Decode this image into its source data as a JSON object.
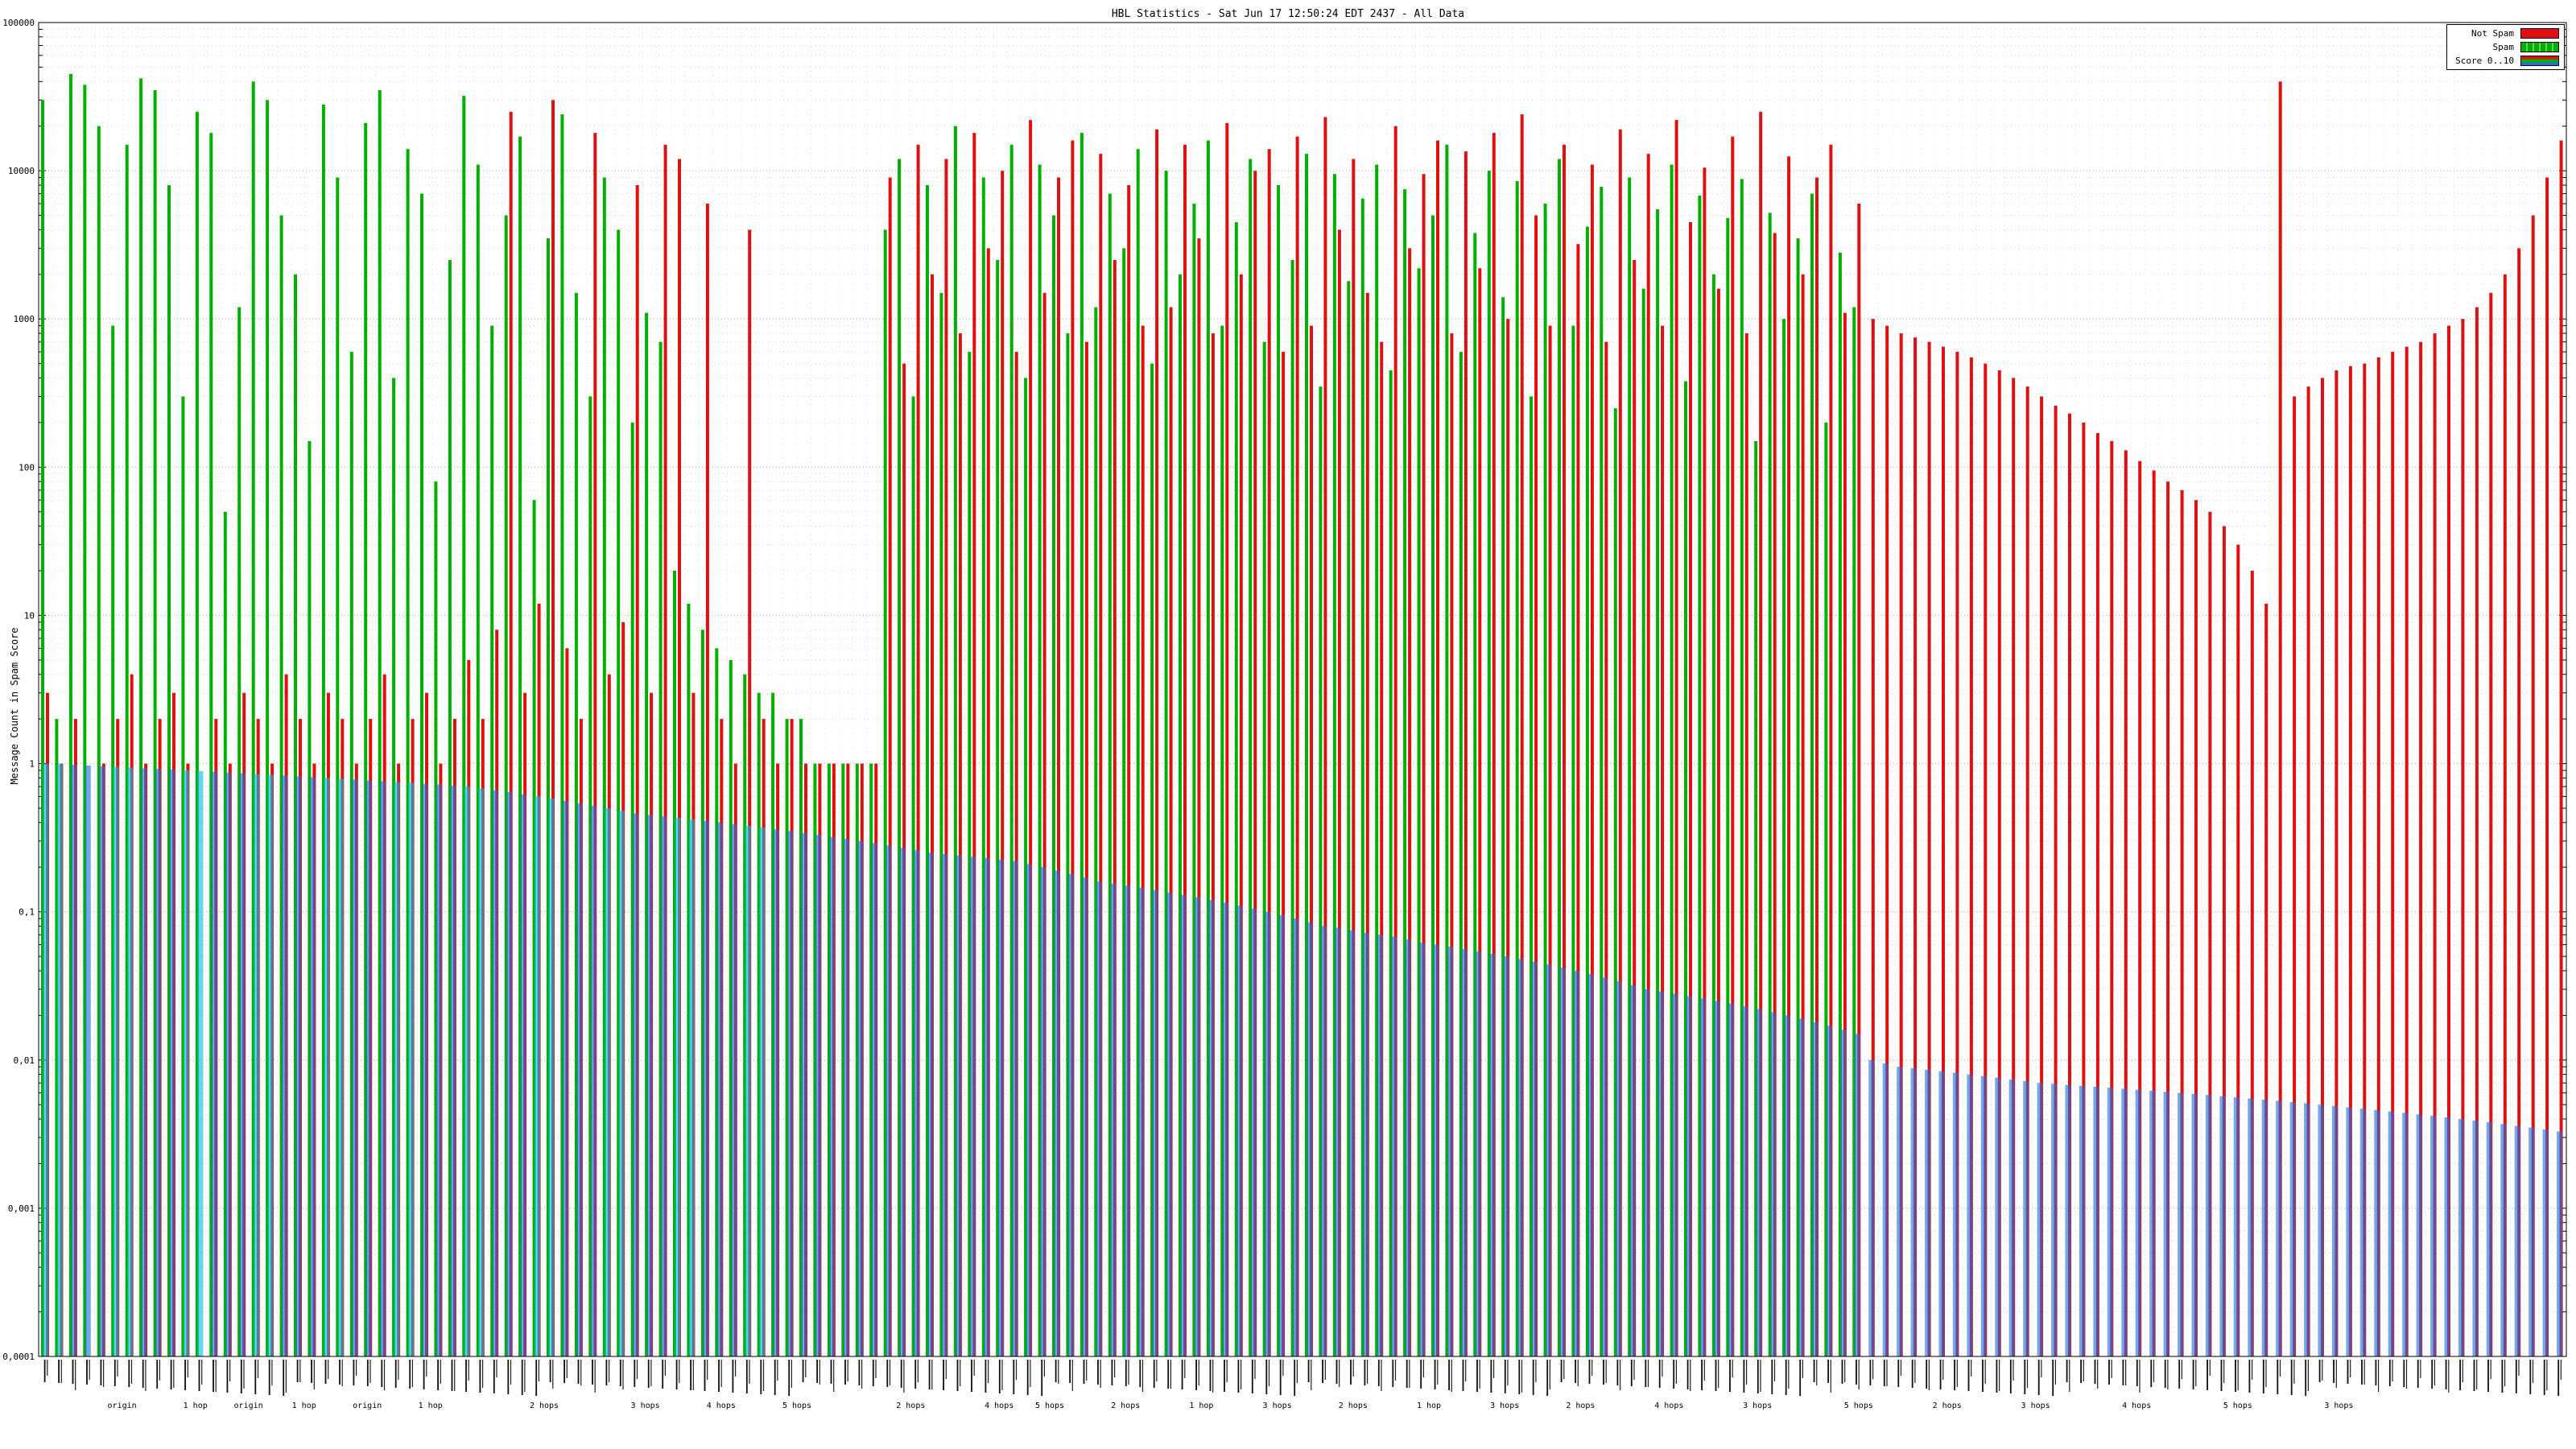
{
  "chart_data": {
    "type": "bar",
    "title": "HBL Statistics - Sat Jun 17 12:50:24 EDT 2437 - All Data",
    "ylabel": "Message Count in Spam Score",
    "yscale": "log",
    "ylim": [
      0.0001,
      100000
    ],
    "y_ticks": [
      "100000",
      "10000",
      "1000",
      "100",
      "10",
      "1",
      "0,1",
      "0,01",
      "0,001",
      "0,0001"
    ],
    "grid": true,
    "legend_position": "top-right",
    "legend": [
      {
        "name": "Not Spam",
        "color": "#e01010"
      },
      {
        "name": "Spam",
        "color": "#00b000"
      },
      {
        "name": "Score 0..10",
        "color": "#2070e0"
      }
    ],
    "score_alt_color": "#00c0e8",
    "x_group_labels": [
      {
        "label": "origin",
        "f": 0.033
      },
      {
        "label": "1 hop",
        "f": 0.062
      },
      {
        "label": "origin",
        "f": 0.083
      },
      {
        "label": "1 hop",
        "f": 0.105
      },
      {
        "label": "origin",
        "f": 0.13
      },
      {
        "label": "1 hop",
        "f": 0.155
      },
      {
        "label": "2 hops",
        "f": 0.2
      },
      {
        "label": "3 hops",
        "f": 0.24
      },
      {
        "label": "4 hops",
        "f": 0.27
      },
      {
        "label": "5 hops",
        "f": 0.3
      },
      {
        "label": "2 hops",
        "f": 0.345
      },
      {
        "label": "4 hops",
        "f": 0.38
      },
      {
        "label": "5 hops",
        "f": 0.4
      },
      {
        "label": "2 hops",
        "f": 0.43
      },
      {
        "label": "1 hop",
        "f": 0.46
      },
      {
        "label": "3 hops",
        "f": 0.49
      },
      {
        "label": "2 hops",
        "f": 0.52
      },
      {
        "label": "1 hop",
        "f": 0.55
      },
      {
        "label": "3 hops",
        "f": 0.58
      },
      {
        "label": "2 hops",
        "f": 0.61
      },
      {
        "label": "4 hops",
        "f": 0.645
      },
      {
        "label": "3 hops",
        "f": 0.68
      },
      {
        "label": "5 hops",
        "f": 0.72
      },
      {
        "label": "2 hops",
        "f": 0.755
      },
      {
        "label": "3 hops",
        "f": 0.79
      },
      {
        "label": "4 hops",
        "f": 0.83
      },
      {
        "label": "5 hops",
        "f": 0.87
      },
      {
        "label": "3 hops",
        "f": 0.91
      }
    ],
    "series": [
      {
        "name": "Not Spam",
        "color": "#e01010",
        "values": [
          3,
          1,
          2,
          0,
          1,
          2,
          4,
          1,
          2,
          3,
          1,
          0,
          2,
          1,
          3,
          2,
          1,
          4,
          2,
          1,
          3,
          2,
          1,
          2,
          4,
          1,
          2,
          3,
          1,
          2,
          5,
          2,
          8,
          25000,
          3,
          12,
          30000,
          6,
          2,
          18000,
          4,
          9,
          8000,
          3,
          15000,
          12000,
          3,
          6000,
          2,
          1,
          4000,
          2,
          1,
          2,
          1,
          1,
          1,
          1,
          1,
          1,
          9000,
          500,
          15000,
          2000,
          12000,
          800,
          18000,
          3000,
          10000,
          600,
          22000,
          1500,
          9000,
          16000,
          700,
          13000,
          2500,
          8000,
          900,
          19000,
          1200,
          15000,
          3500,
          800,
          21000,
          2000,
          10000,
          14000,
          600,
          17000,
          900,
          23000,
          4000,
          12000,
          1500,
          700,
          20000,
          3000,
          9500,
          16000,
          800,
          13500,
          2200,
          18000,
          1000,
          24000,
          5000,
          900,
          15000,
          3200,
          11000,
          700,
          19000,
          2500,
          13000,
          900,
          22000,
          4500,
          10500,
          1600,
          17000,
          800,
          25000,
          3800,
          12500,
          2000,
          9000,
          15000,
          1100,
          6000,
          1000,
          900,
          800,
          750,
          700,
          650,
          600,
          550,
          500,
          450,
          400,
          350,
          300,
          260,
          230,
          200,
          170,
          150,
          130,
          110,
          95,
          80,
          70,
          60,
          50,
          40,
          30,
          20,
          12,
          40000,
          300,
          350,
          400,
          450,
          480,
          500,
          550,
          600,
          650,
          700,
          800,
          900,
          1000,
          1200,
          1500,
          2000,
          3000,
          5000,
          9000,
          16000
        ]
      },
      {
        "name": "Spam",
        "color": "#00b000",
        "values": [
          30000,
          2,
          45000,
          38000,
          20000,
          900,
          15000,
          42000,
          35000,
          8000,
          300,
          25000,
          18000,
          50,
          1200,
          40000,
          30000,
          5000,
          2000,
          150,
          28000,
          9000,
          600,
          21000,
          35000,
          400,
          14000,
          7000,
          80,
          2500,
          32000,
          11000,
          900,
          5000,
          17000,
          60,
          3500,
          24000,
          1500,
          300,
          9000,
          4000,
          200,
          1100,
          700,
          20,
          12,
          8,
          6,
          5,
          4,
          3,
          3,
          2,
          2,
          1,
          1,
          1,
          1,
          1,
          4000,
          12000,
          300,
          8000,
          1500,
          20000,
          600,
          9000,
          2500,
          15000,
          400,
          11000,
          5000,
          800,
          18000,
          1200,
          7000,
          3000,
          14000,
          500,
          10000,
          2000,
          6000,
          16000,
          900,
          4500,
          12000,
          700,
          8000,
          2500,
          13000,
          350,
          9500,
          1800,
          6500,
          11000,
          450,
          7500,
          2200,
          5000,
          15000,
          600,
          3800,
          10000,
          1400,
          8500,
          300,
          6000,
          12000,
          900,
          4200,
          7800,
          250,
          9000,
          1600,
          5500,
          11000,
          380,
          6800,
          2000,
          4800,
          8800,
          150,
          5200,
          1000,
          3500,
          7000,
          200,
          2800,
          1200,
          0,
          0,
          0,
          0,
          0,
          0,
          0,
          0,
          0,
          0,
          0,
          0,
          0,
          0,
          0,
          0,
          0,
          0,
          0,
          0,
          0,
          0,
          0,
          0,
          0,
          0,
          0,
          0,
          0,
          0,
          0,
          0,
          0,
          0,
          0,
          0,
          0,
          0,
          0,
          0,
          0,
          0,
          0,
          0,
          0,
          0,
          0,
          0,
          0,
          0
        ]
      },
      {
        "name": "Score 0..10",
        "color": "#2070e0",
        "values": [
          1.0,
          1.0,
          0.98,
          0.97,
          0.96,
          0.95,
          0.94,
          0.93,
          0.92,
          0.91,
          0.9,
          0.89,
          0.88,
          0.87,
          0.86,
          0.85,
          0.84,
          0.83,
          0.82,
          0.81,
          0.8,
          0.79,
          0.78,
          0.77,
          0.76,
          0.75,
          0.74,
          0.73,
          0.72,
          0.71,
          0.7,
          0.68,
          0.66,
          0.64,
          0.62,
          0.6,
          0.58,
          0.56,
          0.54,
          0.52,
          0.5,
          0.48,
          0.46,
          0.45,
          0.44,
          0.43,
          0.42,
          0.41,
          0.4,
          0.39,
          0.38,
          0.37,
          0.36,
          0.35,
          0.34,
          0.33,
          0.32,
          0.31,
          0.3,
          0.29,
          0.28,
          0.27,
          0.26,
          0.25,
          0.245,
          0.24,
          0.235,
          0.23,
          0.225,
          0.22,
          0.21,
          0.2,
          0.19,
          0.18,
          0.17,
          0.16,
          0.155,
          0.15,
          0.145,
          0.14,
          0.135,
          0.13,
          0.125,
          0.12,
          0.115,
          0.11,
          0.105,
          0.1,
          0.095,
          0.09,
          0.085,
          0.08,
          0.078,
          0.075,
          0.072,
          0.07,
          0.068,
          0.065,
          0.062,
          0.06,
          0.058,
          0.056,
          0.054,
          0.052,
          0.05,
          0.048,
          0.046,
          0.044,
          0.042,
          0.04,
          0.038,
          0.036,
          0.034,
          0.032,
          0.03,
          0.029,
          0.028,
          0.027,
          0.026,
          0.025,
          0.024,
          0.023,
          0.022,
          0.021,
          0.02,
          0.019,
          0.018,
          0.017,
          0.016,
          0.015,
          0.01,
          0.0095,
          0.009,
          0.0088,
          0.0086,
          0.0084,
          0.0082,
          0.008,
          0.0078,
          0.0076,
          0.0074,
          0.0072,
          0.007,
          0.0069,
          0.0068,
          0.0067,
          0.0066,
          0.0065,
          0.0064,
          0.0063,
          0.0062,
          0.0061,
          0.006,
          0.0059,
          0.0058,
          0.0057,
          0.0056,
          0.0055,
          0.0054,
          0.0053,
          0.0052,
          0.0051,
          0.005,
          0.0049,
          0.0048,
          0.0047,
          0.0046,
          0.0045,
          0.0044,
          0.0043,
          0.0042,
          0.0041,
          0.004,
          0.0039,
          0.0038,
          0.0037,
          0.0036,
          0.0035,
          0.0034,
          0.0033
        ]
      }
    ]
  }
}
